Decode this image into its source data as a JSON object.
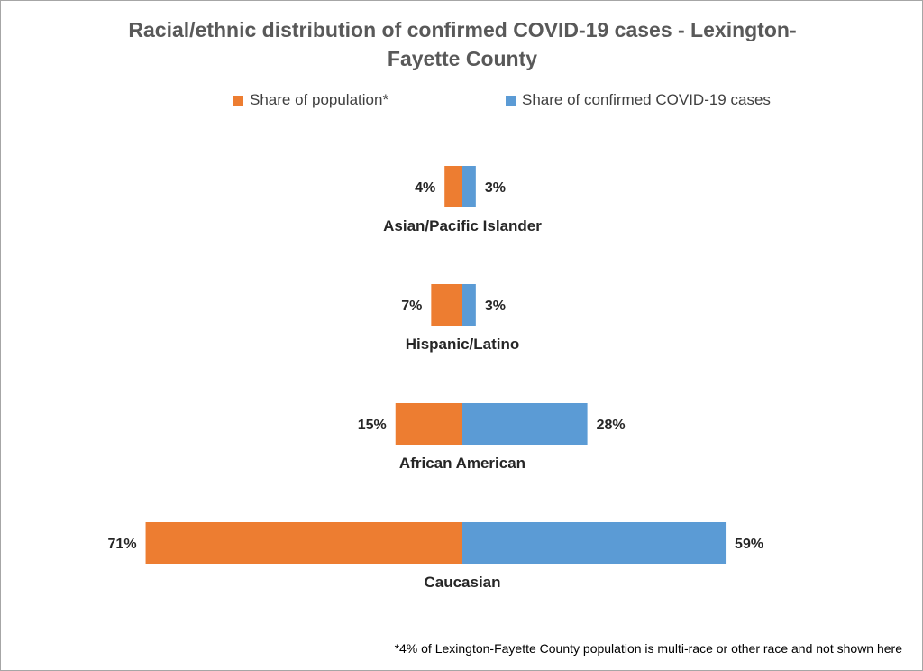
{
  "title_lines": [
    "Racial/ethnic distribution of confirmed COVID-19 cases -  Lexington-",
    "Fayette County"
  ],
  "footnote": "*4% of Lexington-Fayette County population is multi-race or other race and not shown here",
  "colors": {
    "population": "#ed7d31",
    "cases": "#5b9bd5"
  },
  "chart_data": {
    "type": "bar",
    "orientation": "horizontal-diverging",
    "categories": [
      "Asian/Pacific Islander",
      "Hispanic/Latino",
      "African American",
      "Caucasian"
    ],
    "series": [
      {
        "name": "Share of population*",
        "values": [
          4,
          7,
          15,
          71
        ],
        "labels": [
          "4%",
          "7%",
          "15%",
          "71%"
        ]
      },
      {
        "name": "Share of confirmed COVID-19 cases",
        "values": [
          3,
          3,
          28,
          59
        ],
        "labels": [
          "3%",
          "3%",
          "28%",
          "59%"
        ]
      }
    ],
    "unit": "%",
    "legend": "top",
    "grid": false
  }
}
